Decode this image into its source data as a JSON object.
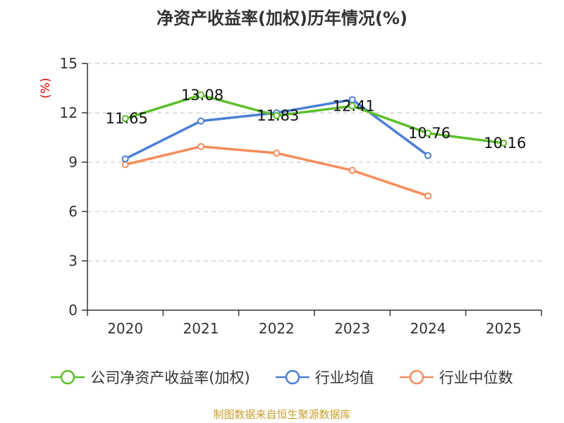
{
  "title": "净资产收益率(加权)历年情况(%)",
  "source": "制图数据来自恒生聚源数据库",
  "colors": {
    "source_text": "#c7a032",
    "ylabel": "#dd0000",
    "grid": "#cccccc",
    "axis": "#333333"
  },
  "chart_data": {
    "type": "line",
    "title": "净资产收益率(加权)历年情况(%)",
    "xlabel": "",
    "ylabel": "(%)",
    "ylim": [
      0,
      15
    ],
    "yticks": [
      0,
      3,
      6,
      9,
      12,
      15
    ],
    "grid": true,
    "legend_position": "bottom",
    "categories": [
      "2020",
      "2021",
      "2022",
      "2023",
      "2024",
      "2025"
    ],
    "series": [
      {
        "name": "公司净资产收益率(加权)",
        "color": "#5cbf2a",
        "values": [
          11.65,
          13.08,
          11.83,
          12.41,
          10.76,
          10.16
        ],
        "labels": [
          "11.65",
          "13.08",
          "11.83",
          "12.41",
          "10.76",
          "10.16"
        ]
      },
      {
        "name": "行业均值",
        "color": "#4a7fd6",
        "values": [
          9.2,
          11.5,
          12.0,
          12.8,
          9.4,
          null
        ]
      },
      {
        "name": "行业中位数",
        "color": "#f68c5a",
        "values": [
          8.85,
          9.95,
          9.55,
          8.5,
          6.95,
          null
        ]
      }
    ]
  }
}
